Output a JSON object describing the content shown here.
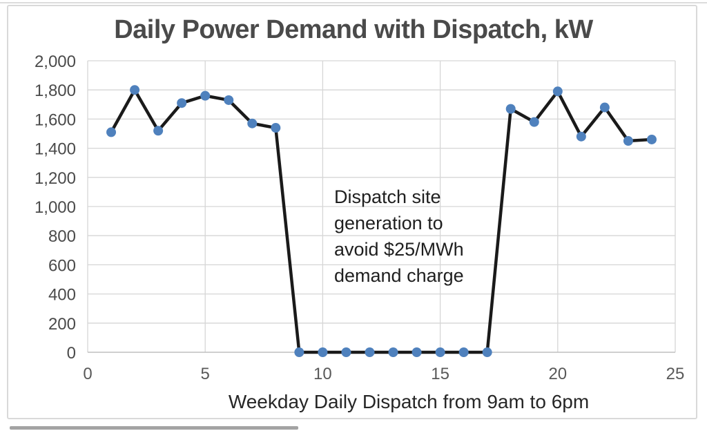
{
  "chart_data": {
    "type": "line",
    "title": "Daily Power Demand with Dispatch, kW",
    "xlabel": "Weekday Daily Dispatch from 9am to 6pm",
    "ylabel": "",
    "x": [
      1,
      2,
      3,
      4,
      5,
      6,
      7,
      8,
      9,
      10,
      11,
      12,
      13,
      14,
      15,
      16,
      17,
      18,
      19,
      20,
      21,
      22,
      23,
      24
    ],
    "values": [
      1510,
      1800,
      1520,
      1710,
      1760,
      1730,
      1570,
      1540,
      0,
      0,
      0,
      0,
      0,
      0,
      0,
      0,
      0,
      1670,
      1580,
      1790,
      1480,
      1680,
      1450,
      1460
    ],
    "xlim": [
      0,
      25
    ],
    "ylim": [
      0,
      2000
    ],
    "x_ticks": [
      0,
      5,
      10,
      15,
      20,
      25
    ],
    "y_tick_values": [
      0,
      200,
      400,
      600,
      800,
      1000,
      1200,
      1400,
      1600,
      1800,
      2000
    ],
    "y_tick_labels": [
      "0",
      "200",
      "400",
      "600",
      "800",
      "1,000",
      "1,200",
      "1,400",
      "1,600",
      "1,800",
      "2,000"
    ],
    "grid": true,
    "legend": "none",
    "annotation": "Dispatch site\ngeneration to\navoid $25/MWh\ndemand charge",
    "colors": {
      "marker": "#4f81bd",
      "line": "#1a1a1a",
      "grid": "#d6d6d6",
      "axis": "#bfbfbf",
      "title": "#4a4a4a",
      "frame": "#d9d9d9"
    }
  }
}
